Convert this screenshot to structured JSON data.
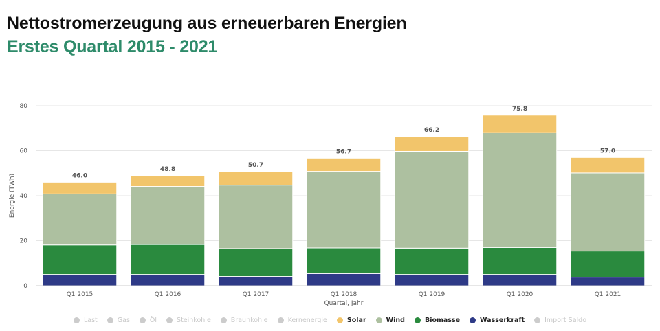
{
  "header": {
    "title": "Nettostromerzeugung aus erneuerbaren Energien",
    "subtitle": "Erstes Quartal 2015 - 2021"
  },
  "chart_data": {
    "type": "bar",
    "stacked": true,
    "categories": [
      "Q1 2015",
      "Q1 2016",
      "Q1 2017",
      "Q1 2018",
      "Q1 2019",
      "Q1 2020",
      "Q1 2021"
    ],
    "series": [
      {
        "name": "Wasserkraft",
        "color": "#2e3a87",
        "values": [
          5.0,
          5.0,
          4.1,
          5.4,
          5.0,
          5.0,
          3.8
        ]
      },
      {
        "name": "Biomasse",
        "color": "#2a8a3e",
        "values": [
          13.1,
          13.3,
          12.4,
          11.4,
          11.7,
          12.0,
          11.6
        ]
      },
      {
        "name": "Wind",
        "color": "#adc0a0",
        "values": [
          22.7,
          25.8,
          28.2,
          34.0,
          43.0,
          51.0,
          34.7
        ]
      },
      {
        "name": "Solar",
        "color": "#f2c56b",
        "values": [
          5.2,
          4.7,
          6.0,
          5.9,
          6.5,
          7.8,
          6.9
        ]
      }
    ],
    "totals": [
      "46.0",
      "48.8",
      "50.7",
      "56.7",
      "66.2",
      "75.8",
      "57.0"
    ],
    "xlabel": "Quartal, Jahr",
    "ylabel": "Energie (TWh)",
    "ylim": [
      0,
      80
    ],
    "yticks": [
      "0",
      "20",
      "40",
      "60",
      "80"
    ],
    "grid": true,
    "legend_position": "bottom"
  },
  "legend": [
    {
      "label": "Last",
      "active": false,
      "color": "#cccccc"
    },
    {
      "label": "Gas",
      "active": false,
      "color": "#cccccc"
    },
    {
      "label": "Öl",
      "active": false,
      "color": "#cccccc"
    },
    {
      "label": "Steinkohle",
      "active": false,
      "color": "#cccccc"
    },
    {
      "label": "Braunkohle",
      "active": false,
      "color": "#cccccc"
    },
    {
      "label": "Kernenergie",
      "active": false,
      "color": "#cccccc"
    },
    {
      "label": "Solar",
      "active": true,
      "color": "#f2c56b"
    },
    {
      "label": "Wind",
      "active": true,
      "color": "#adc0a0"
    },
    {
      "label": "Biomasse",
      "active": true,
      "color": "#2a8a3e"
    },
    {
      "label": "Wasserkraft",
      "active": true,
      "color": "#2e3a87"
    },
    {
      "label": "Import Saldo",
      "active": false,
      "color": "#cccccc"
    }
  ]
}
